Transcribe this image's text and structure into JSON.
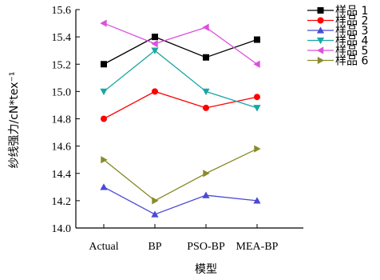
{
  "chart_data": {
    "type": "line",
    "categories": [
      "Actual",
      "BP",
      "PSO-BP",
      "MEA-BP"
    ],
    "xlabel": "模型",
    "ylabel": "纱线强力/cN*tex⁻¹",
    "ylim": [
      14.0,
      15.6
    ],
    "yticks": [
      "14.0",
      "14.2",
      "14.4",
      "14.6",
      "14.8",
      "15.0",
      "15.2",
      "15.4",
      "15.6"
    ],
    "grid": false,
    "legend_position": "top-right",
    "series": [
      {
        "name": "样品 1",
        "values": [
          15.2,
          15.4,
          15.25,
          15.38
        ],
        "color": "#000000",
        "marker": "square"
      },
      {
        "name": "样品 2",
        "values": [
          14.8,
          15.0,
          14.88,
          14.96
        ],
        "color": "#ff0000",
        "marker": "circle"
      },
      {
        "name": "样品 3",
        "values": [
          14.3,
          14.1,
          14.24,
          14.2
        ],
        "color": "#4a4ad6",
        "marker": "triangle-up"
      },
      {
        "name": "样品 4",
        "values": [
          15.0,
          15.3,
          15.0,
          14.88
        ],
        "color": "#1aa6a6",
        "marker": "triangle-down"
      },
      {
        "name": "样品 5",
        "values": [
          15.5,
          15.35,
          15.47,
          15.2
        ],
        "color": "#dd4fdd",
        "marker": "triangle-left"
      },
      {
        "name": "样品 6",
        "values": [
          14.5,
          14.2,
          14.4,
          14.58
        ],
        "color": "#8a8a2a",
        "marker": "triangle-right"
      }
    ]
  }
}
